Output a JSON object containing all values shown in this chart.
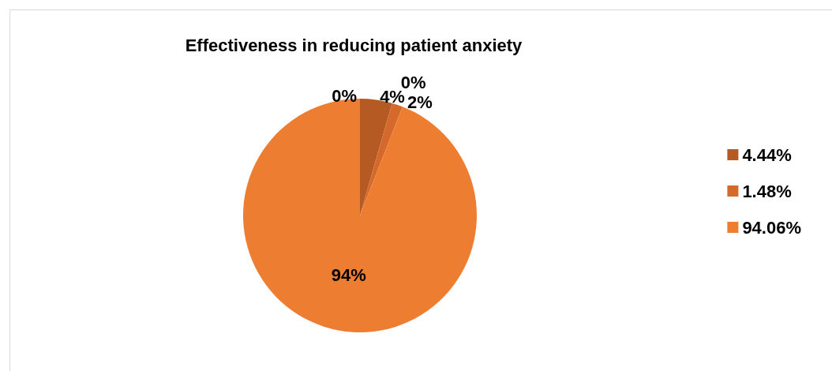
{
  "chart_data": {
    "type": "pie",
    "title": "Effectiveness in reducing patient anxiety",
    "categories": [
      null,
      "4.44%",
      null,
      "1.48%",
      "94.06%"
    ],
    "values": [
      0,
      4.44,
      0,
      1.5,
      94.06
    ],
    "colors": [
      "#9e480e",
      "#b45a22",
      "#c55a11",
      "#d5692c",
      "#ed7d31"
    ],
    "value_labels": [
      "0%",
      "4%",
      "0%",
      "2%",
      "94%"
    ],
    "legend": "right"
  }
}
